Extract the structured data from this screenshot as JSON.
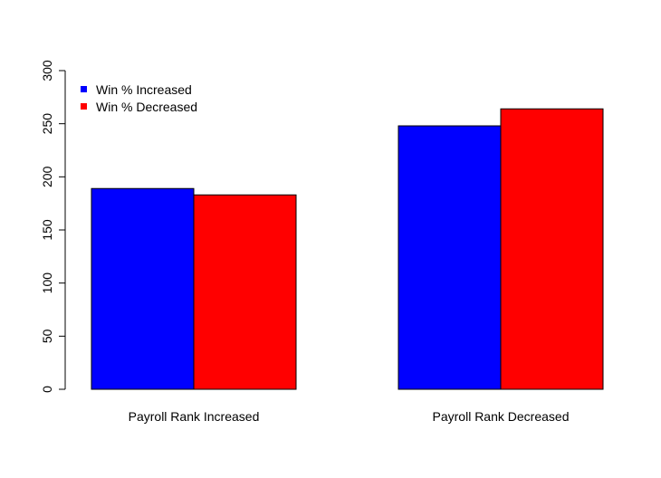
{
  "chart_data": {
    "type": "bar",
    "title": "",
    "xlabel": "",
    "ylabel": "",
    "categories": [
      "Payroll Rank Increased",
      "Payroll Rank Decreased"
    ],
    "series": [
      {
        "name": "Win % Increased",
        "color": "#0000ff",
        "values": [
          189,
          248
        ]
      },
      {
        "name": "Win % Decreased",
        "color": "#ff0000",
        "values": [
          183,
          264
        ]
      }
    ],
    "ylim": [
      0,
      300
    ],
    "yticks": [
      0,
      50,
      100,
      150,
      200,
      250,
      300
    ],
    "grid": false,
    "legend_position": "top-left",
    "legend_box": false
  }
}
